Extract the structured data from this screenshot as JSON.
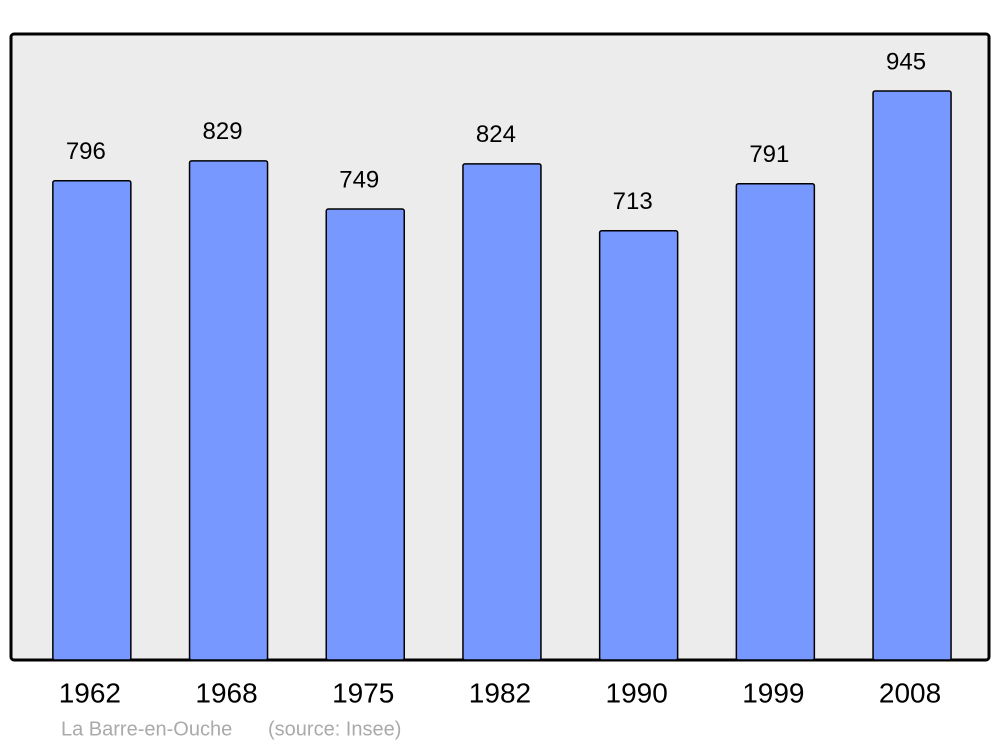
{
  "chart_data": {
    "type": "bar",
    "title": "La Barre-en-Ouche",
    "source": "(source: Insee)",
    "categories": [
      "1962",
      "1968",
      "1975",
      "1982",
      "1990",
      "1999",
      "2008"
    ],
    "values": [
      796,
      829,
      749,
      824,
      713,
      791,
      945
    ],
    "color": "#7799ff"
  }
}
